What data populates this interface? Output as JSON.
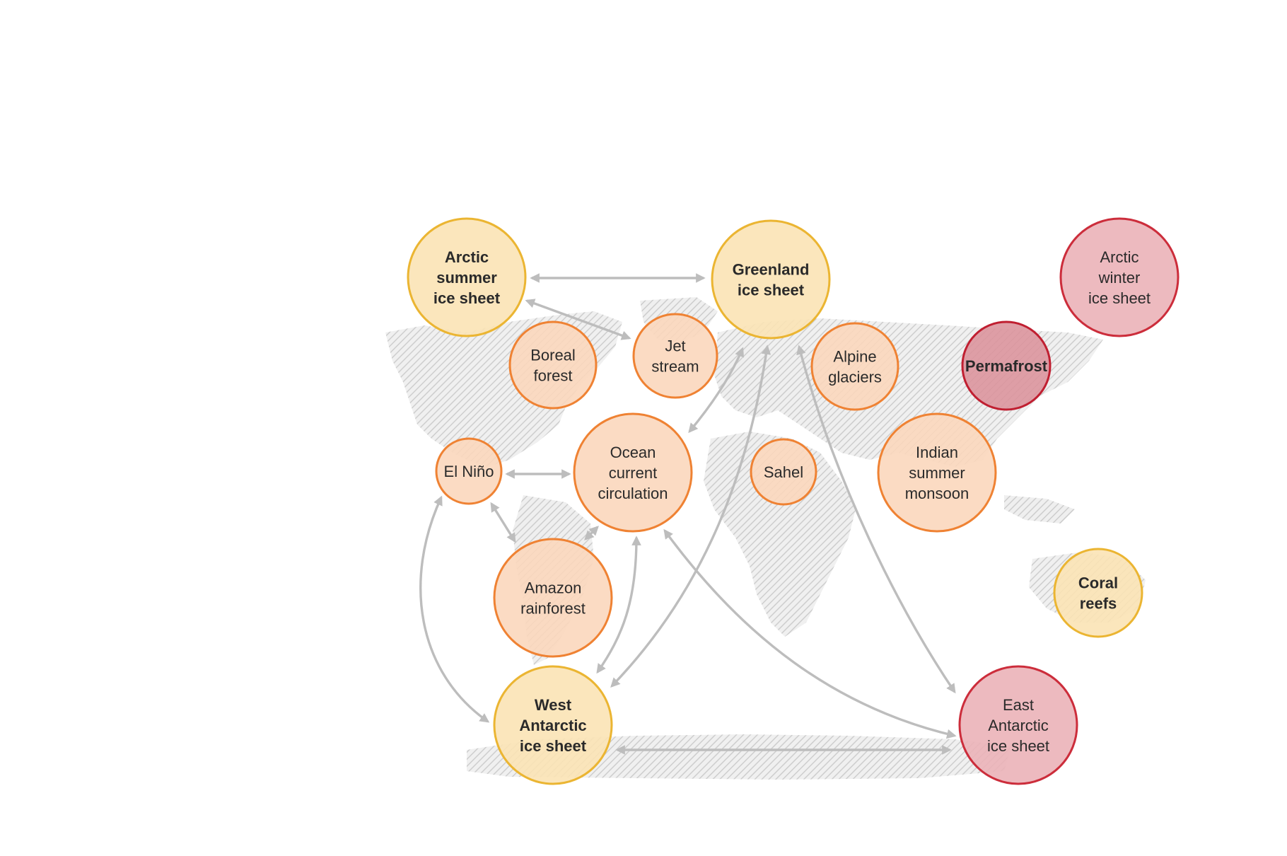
{
  "diagram": {
    "nodes": [
      {
        "id": "arctic_summer",
        "lines": [
          "Arctic",
          "summer",
          "ice sheet"
        ],
        "category": "ice",
        "bold": true
      },
      {
        "id": "greenland",
        "lines": [
          "Greenland",
          "ice sheet"
        ],
        "category": "ice",
        "bold": true
      },
      {
        "id": "arctic_winter",
        "lines": [
          "Arctic",
          "winter",
          "ice sheet"
        ],
        "category": "critical",
        "bold": false
      },
      {
        "id": "boreal",
        "lines": [
          "Boreal",
          "forest"
        ],
        "category": "biosphere",
        "bold": false
      },
      {
        "id": "jet",
        "lines": [
          "Jet",
          "stream"
        ],
        "category": "biosphere",
        "bold": false
      },
      {
        "id": "alpine",
        "lines": [
          "Alpine",
          "glaciers"
        ],
        "category": "biosphere",
        "bold": false
      },
      {
        "id": "permafrost",
        "lines": [
          "Permafrost"
        ],
        "category": "critical-strong",
        "bold": true
      },
      {
        "id": "elnino",
        "lines": [
          "El Niño"
        ],
        "category": "biosphere",
        "bold": false
      },
      {
        "id": "ocean",
        "lines": [
          "Ocean",
          "current",
          "circulation"
        ],
        "category": "biosphere",
        "bold": false
      },
      {
        "id": "sahel",
        "lines": [
          "Sahel"
        ],
        "category": "biosphere",
        "bold": false
      },
      {
        "id": "indian",
        "lines": [
          "Indian",
          "summer",
          "monsoon"
        ],
        "category": "biosphere",
        "bold": false
      },
      {
        "id": "coral",
        "lines": [
          "Coral",
          "reefs"
        ],
        "category": "ice",
        "bold": true
      },
      {
        "id": "amazon",
        "lines": [
          "Amazon",
          "rainforest"
        ],
        "category": "biosphere",
        "bold": false
      },
      {
        "id": "west_antarctic",
        "lines": [
          "West",
          "Antarctic",
          "ice sheet"
        ],
        "category": "ice",
        "bold": true
      },
      {
        "id": "east_antarctic",
        "lines": [
          "East",
          "Antarctic",
          "ice sheet"
        ],
        "category": "critical",
        "bold": false
      }
    ],
    "links": [
      {
        "from": "arctic_summer",
        "to": "greenland"
      },
      {
        "from": "arctic_summer",
        "to": "jet"
      },
      {
        "from": "greenland",
        "to": "ocean"
      },
      {
        "from": "greenland",
        "to": "west_antarctic"
      },
      {
        "from": "greenland",
        "to": "east_antarctic"
      },
      {
        "from": "elnino",
        "to": "ocean"
      },
      {
        "from": "elnino",
        "to": "amazon"
      },
      {
        "from": "elnino",
        "to": "west_antarctic"
      },
      {
        "from": "ocean",
        "to": "amazon"
      },
      {
        "from": "ocean",
        "to": "west_antarctic"
      },
      {
        "from": "ocean",
        "to": "east_antarctic"
      },
      {
        "from": "west_antarctic",
        "to": "east_antarctic"
      }
    ],
    "colors": {
      "ice": {
        "fill": "#fbe3b5",
        "stroke": "#ebb532"
      },
      "biosphere": {
        "fill": "#fbd7bd",
        "stroke": "#ef8233"
      },
      "critical": {
        "fill": "#ebb3b8",
        "stroke": "#cc2d3b"
      },
      "critical-strong": {
        "fill": "#dc959d",
        "stroke": "#c01f31"
      },
      "arrow": "#bdbdbd",
      "map": "#c8c8c8"
    }
  }
}
